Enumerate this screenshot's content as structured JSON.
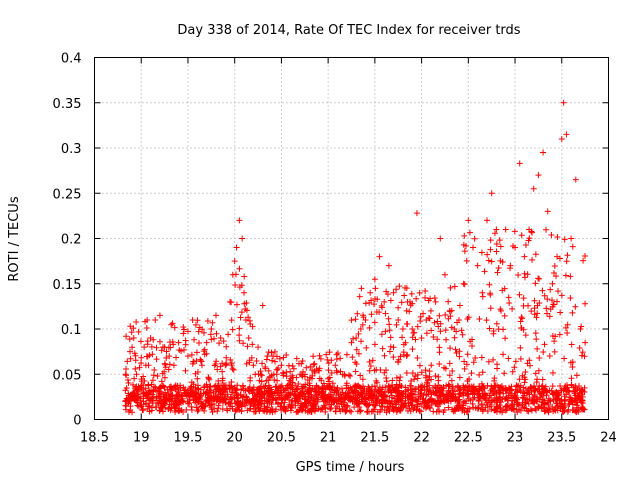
{
  "chart_data": {
    "type": "scatter",
    "title": "Day 338 of 2014, Rate Of TEC Index for receiver trds",
    "xlabel": "GPS time / hours",
    "ylabel": "ROTI / TECUs",
    "xlim": [
      18.5,
      24
    ],
    "ylim": [
      0,
      0.4
    ],
    "x_ticks": [
      18.5,
      19,
      19.5,
      20,
      20.5,
      21,
      21.5,
      22,
      22.5,
      23,
      23.5,
      24
    ],
    "x_tick_labels": [
      "18.5",
      "19",
      "19.5",
      "20",
      "20.5",
      "21",
      "21.5",
      "22",
      "22.5",
      "23",
      "23.5",
      "24"
    ],
    "y_ticks": [
      0,
      0.05,
      0.1,
      0.15,
      0.2,
      0.25,
      0.3,
      0.35,
      0.4
    ],
    "y_tick_labels": [
      "0",
      "0.05",
      "0.1",
      "0.15",
      "0.2",
      "0.25",
      "0.3",
      "0.35",
      "0.4"
    ],
    "grid": true,
    "marker": "plus",
    "color": "#ff0000",
    "x_range_observed": [
      18.83,
      23.75
    ],
    "series": [
      {
        "name": "ROTI",
        "points": [
          [
            18.85,
            0.02
          ],
          [
            18.88,
            0.075
          ],
          [
            18.92,
            0.09
          ],
          [
            18.95,
            0.05
          ],
          [
            19.0,
            0.035
          ],
          [
            19.05,
            0.06
          ],
          [
            19.1,
            0.09
          ],
          [
            19.15,
            0.11
          ],
          [
            19.2,
            0.115
          ],
          [
            19.25,
            0.08
          ],
          [
            19.3,
            0.07
          ],
          [
            19.35,
            0.06
          ],
          [
            19.4,
            0.085
          ],
          [
            19.45,
            0.095
          ],
          [
            19.5,
            0.07
          ],
          [
            19.55,
            0.11
          ],
          [
            19.6,
            0.045
          ],
          [
            19.65,
            0.06
          ],
          [
            19.7,
            0.085
          ],
          [
            19.75,
            0.1
          ],
          [
            19.8,
            0.115
          ],
          [
            19.85,
            0.09
          ],
          [
            19.9,
            0.06
          ],
          [
            19.95,
            0.13
          ],
          [
            19.98,
            0.16
          ],
          [
            20.0,
            0.175
          ],
          [
            20.02,
            0.19
          ],
          [
            20.05,
            0.22
          ],
          [
            20.08,
            0.2
          ],
          [
            20.1,
            0.14
          ],
          [
            20.12,
            0.11
          ],
          [
            20.15,
            0.09
          ],
          [
            20.2,
            0.06
          ],
          [
            20.25,
            0.08
          ],
          [
            20.3,
            0.126
          ],
          [
            20.35,
            0.07
          ],
          [
            20.4,
            0.065
          ],
          [
            20.45,
            0.05
          ],
          [
            20.5,
            0.06
          ],
          [
            20.55,
            0.035
          ],
          [
            20.6,
            0.045
          ],
          [
            20.7,
            0.05
          ],
          [
            20.8,
            0.04
          ],
          [
            20.9,
            0.035
          ],
          [
            21.0,
            0.045
          ],
          [
            21.05,
            0.04
          ],
          [
            21.1,
            0.035
          ],
          [
            21.2,
            0.04
          ],
          [
            21.25,
            0.085
          ],
          [
            21.3,
            0.09
          ],
          [
            21.35,
            0.1
          ],
          [
            21.4,
            0.11
          ],
          [
            21.45,
            0.14
          ],
          [
            21.5,
            0.155
          ],
          [
            21.55,
            0.18
          ],
          [
            21.6,
            0.13
          ],
          [
            21.65,
            0.17
          ],
          [
            21.7,
            0.14
          ],
          [
            21.75,
            0.11
          ],
          [
            21.8,
            0.1
          ],
          [
            21.85,
            0.13
          ],
          [
            21.9,
            0.1
          ],
          [
            21.95,
            0.228
          ],
          [
            22.0,
            0.09
          ],
          [
            22.05,
            0.11
          ],
          [
            22.1,
            0.12
          ],
          [
            22.15,
            0.13
          ],
          [
            22.2,
            0.2
          ],
          [
            22.25,
            0.16
          ],
          [
            22.3,
            0.12
          ],
          [
            22.35,
            0.1
          ],
          [
            22.4,
            0.11
          ],
          [
            22.45,
            0.15
          ],
          [
            22.5,
            0.22
          ],
          [
            22.55,
            0.19
          ],
          [
            22.6,
            0.17
          ],
          [
            22.65,
            0.14
          ],
          [
            22.7,
            0.22
          ],
          [
            22.75,
            0.25
          ],
          [
            22.8,
            0.21
          ],
          [
            22.85,
            0.12
          ],
          [
            22.9,
            0.21
          ],
          [
            22.95,
            0.17
          ],
          [
            23.0,
            0.19
          ],
          [
            23.05,
            0.283
          ],
          [
            23.1,
            0.18
          ],
          [
            23.15,
            0.21
          ],
          [
            23.2,
            0.255
          ],
          [
            23.25,
            0.27
          ],
          [
            23.3,
            0.295
          ],
          [
            23.35,
            0.23
          ],
          [
            23.4,
            0.15
          ],
          [
            23.45,
            0.18
          ],
          [
            23.5,
            0.31
          ],
          [
            23.52,
            0.35
          ],
          [
            23.55,
            0.315
          ],
          [
            23.6,
            0.2
          ],
          [
            23.65,
            0.265
          ],
          [
            23.7,
            0.1
          ],
          [
            23.75,
            0.085
          ]
        ]
      }
    ]
  }
}
